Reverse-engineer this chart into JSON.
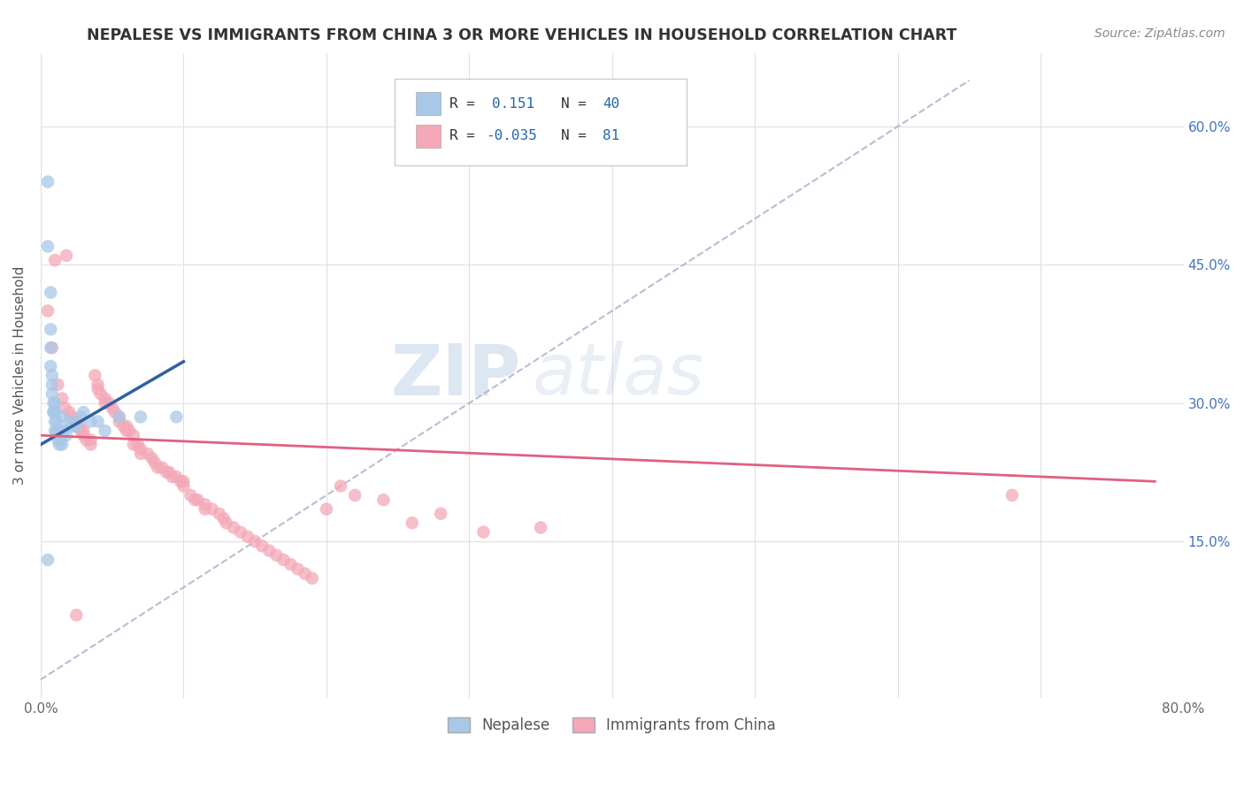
{
  "title": "NEPALESE VS IMMIGRANTS FROM CHINA 3 OR MORE VEHICLES IN HOUSEHOLD CORRELATION CHART",
  "source": "Source: ZipAtlas.com",
  "ylabel": "3 or more Vehicles in Household",
  "xlim": [
    0.0,
    0.8
  ],
  "ylim": [
    -0.02,
    0.68
  ],
  "xticks": [
    0.0,
    0.1,
    0.2,
    0.3,
    0.4,
    0.5,
    0.6,
    0.7,
    0.8
  ],
  "xticklabels": [
    "0.0%",
    "",
    "",
    "",
    "",
    "",
    "",
    "",
    "80.0%"
  ],
  "yticks": [
    0.15,
    0.3,
    0.45,
    0.6
  ],
  "ytick_right_labels": [
    "15.0%",
    "30.0%",
    "45.0%",
    "60.0%"
  ],
  "legend_r1": "R =  0.151",
  "legend_n1": "N = 40",
  "legend_r2": "R = -0.035",
  "legend_n2": "N =  81",
  "color_blue": "#a8c8e8",
  "color_pink": "#f4a8b8",
  "color_blue_line": "#3060a0",
  "color_pink_line": "#e06080",
  "color_dashed": "#aaaacc",
  "watermark_zip": "ZIP",
  "watermark_atlas": "atlas",
  "legend_label1": "Nepalese",
  "legend_label2": "Immigrants from China",
  "nepalese_x": [
    0.005,
    0.005,
    0.005,
    0.007,
    0.007,
    0.007,
    0.007,
    0.008,
    0.008,
    0.008,
    0.009,
    0.009,
    0.009,
    0.01,
    0.01,
    0.01,
    0.01,
    0.011,
    0.011,
    0.012,
    0.012,
    0.013,
    0.013,
    0.014,
    0.015,
    0.015,
    0.015,
    0.016,
    0.018,
    0.02,
    0.022,
    0.025,
    0.028,
    0.03,
    0.035,
    0.04,
    0.045,
    0.055,
    0.07,
    0.095
  ],
  "nepalese_y": [
    0.54,
    0.47,
    0.13,
    0.42,
    0.38,
    0.36,
    0.34,
    0.33,
    0.32,
    0.31,
    0.3,
    0.29,
    0.29,
    0.3,
    0.29,
    0.28,
    0.27,
    0.28,
    0.27,
    0.27,
    0.26,
    0.265,
    0.255,
    0.26,
    0.255,
    0.27,
    0.285,
    0.27,
    0.265,
    0.28,
    0.275,
    0.275,
    0.285,
    0.29,
    0.28,
    0.28,
    0.27,
    0.285,
    0.285,
    0.285
  ],
  "china_x": [
    0.005,
    0.008,
    0.01,
    0.012,
    0.015,
    0.017,
    0.018,
    0.02,
    0.022,
    0.025,
    0.025,
    0.027,
    0.028,
    0.03,
    0.03,
    0.032,
    0.035,
    0.035,
    0.038,
    0.04,
    0.04,
    0.042,
    0.045,
    0.045,
    0.048,
    0.05,
    0.052,
    0.055,
    0.055,
    0.058,
    0.06,
    0.06,
    0.062,
    0.065,
    0.065,
    0.068,
    0.07,
    0.07,
    0.075,
    0.078,
    0.08,
    0.082,
    0.085,
    0.088,
    0.09,
    0.092,
    0.095,
    0.098,
    0.1,
    0.1,
    0.105,
    0.108,
    0.11,
    0.115,
    0.115,
    0.12,
    0.125,
    0.128,
    0.13,
    0.135,
    0.14,
    0.145,
    0.15,
    0.155,
    0.16,
    0.165,
    0.17,
    0.175,
    0.18,
    0.185,
    0.19,
    0.2,
    0.21,
    0.22,
    0.24,
    0.26,
    0.28,
    0.31,
    0.35,
    0.68,
    0.025
  ],
  "china_y": [
    0.4,
    0.36,
    0.455,
    0.32,
    0.305,
    0.295,
    0.46,
    0.29,
    0.285,
    0.28,
    0.275,
    0.275,
    0.27,
    0.27,
    0.265,
    0.26,
    0.26,
    0.255,
    0.33,
    0.32,
    0.315,
    0.31,
    0.305,
    0.3,
    0.3,
    0.295,
    0.29,
    0.285,
    0.28,
    0.275,
    0.275,
    0.27,
    0.27,
    0.265,
    0.255,
    0.255,
    0.25,
    0.245,
    0.245,
    0.24,
    0.235,
    0.23,
    0.23,
    0.225,
    0.225,
    0.22,
    0.22,
    0.215,
    0.215,
    0.21,
    0.2,
    0.195,
    0.195,
    0.19,
    0.185,
    0.185,
    0.18,
    0.175,
    0.17,
    0.165,
    0.16,
    0.155,
    0.15,
    0.145,
    0.14,
    0.135,
    0.13,
    0.125,
    0.12,
    0.115,
    0.11,
    0.185,
    0.21,
    0.2,
    0.195,
    0.17,
    0.18,
    0.16,
    0.165,
    0.2,
    0.07
  ]
}
